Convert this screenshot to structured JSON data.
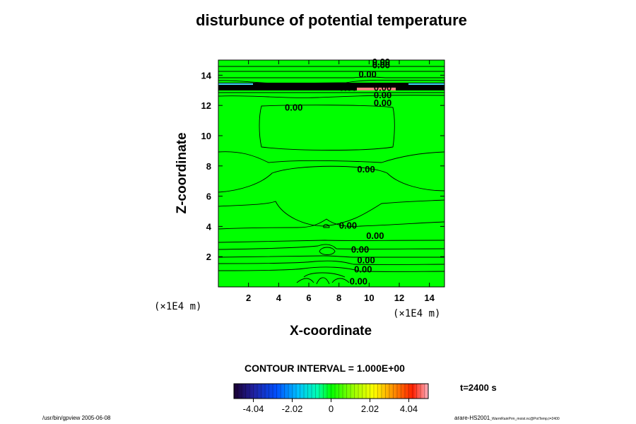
{
  "title": "disturbunce of potential temperature",
  "chart_data": {
    "type": "contour",
    "title": "disturbunce of potential temperature",
    "xlabel": "X-coordinate",
    "ylabel": "Z-coordinate",
    "x_unit": "(×1E4 m)",
    "y_unit": "(×1E4 m)",
    "xlim": [
      0,
      15
    ],
    "ylim": [
      0,
      15
    ],
    "xticks": [
      2,
      4,
      6,
      8,
      10,
      12,
      14
    ],
    "yticks": [
      2,
      4,
      6,
      8,
      10,
      12,
      14
    ],
    "contour_labels": [
      {
        "text": "0.00",
        "x": 10.8,
        "z": 14.9
      },
      {
        "text": "0.00",
        "x": 10.8,
        "z": 14.7
      },
      {
        "text": "0.00",
        "x": 9.9,
        "z": 14.1
      },
      {
        "text": "0.00",
        "x": 8.6,
        "z": 13.2
      },
      {
        "text": "0.00",
        "x": 10.9,
        "z": 13.2
      },
      {
        "text": "0.00",
        "x": 10.9,
        "z": 12.7
      },
      {
        "text": "0.00",
        "x": 10.9,
        "z": 12.2
      },
      {
        "text": "0.00",
        "x": 5.0,
        "z": 11.9
      },
      {
        "text": "0.00",
        "x": 9.8,
        "z": 7.8
      },
      {
        "text": "0.00",
        "x": 8.6,
        "z": 4.1
      },
      {
        "text": "0.00",
        "x": 10.4,
        "z": 3.4
      },
      {
        "text": "0.00",
        "x": 9.4,
        "z": 2.5
      },
      {
        "text": "0.00",
        "x": 9.8,
        "z": 1.8
      },
      {
        "text": "0.00",
        "x": 9.6,
        "z": 1.2
      },
      {
        "text": "0.00",
        "x": 9.3,
        "z": 0.4
      }
    ],
    "colorbar": {
      "min": -5.05,
      "max": 5.05,
      "ticks": [
        -4.04,
        -2.02,
        0,
        2.02,
        4.04
      ],
      "tick_labels": [
        "-4.04",
        "-2.02",
        "0",
        "2.02",
        "4.04"
      ]
    },
    "contour_interval": "CONTOUR INTERVAL = 1.000E+00",
    "time": "t=2400 s"
  },
  "footer_left": "/usr/bin/gpview 2005-06-08",
  "footer_right_main": "arare-HS2001",
  "footer_right_sub": "_WarmRainPrm_moist.nc@PotTemp,t=2400",
  "colors": {
    "field": "#00ff00",
    "contour": "#000000",
    "neg_band": "#40e0ff",
    "pos_band": "#ff8080"
  }
}
